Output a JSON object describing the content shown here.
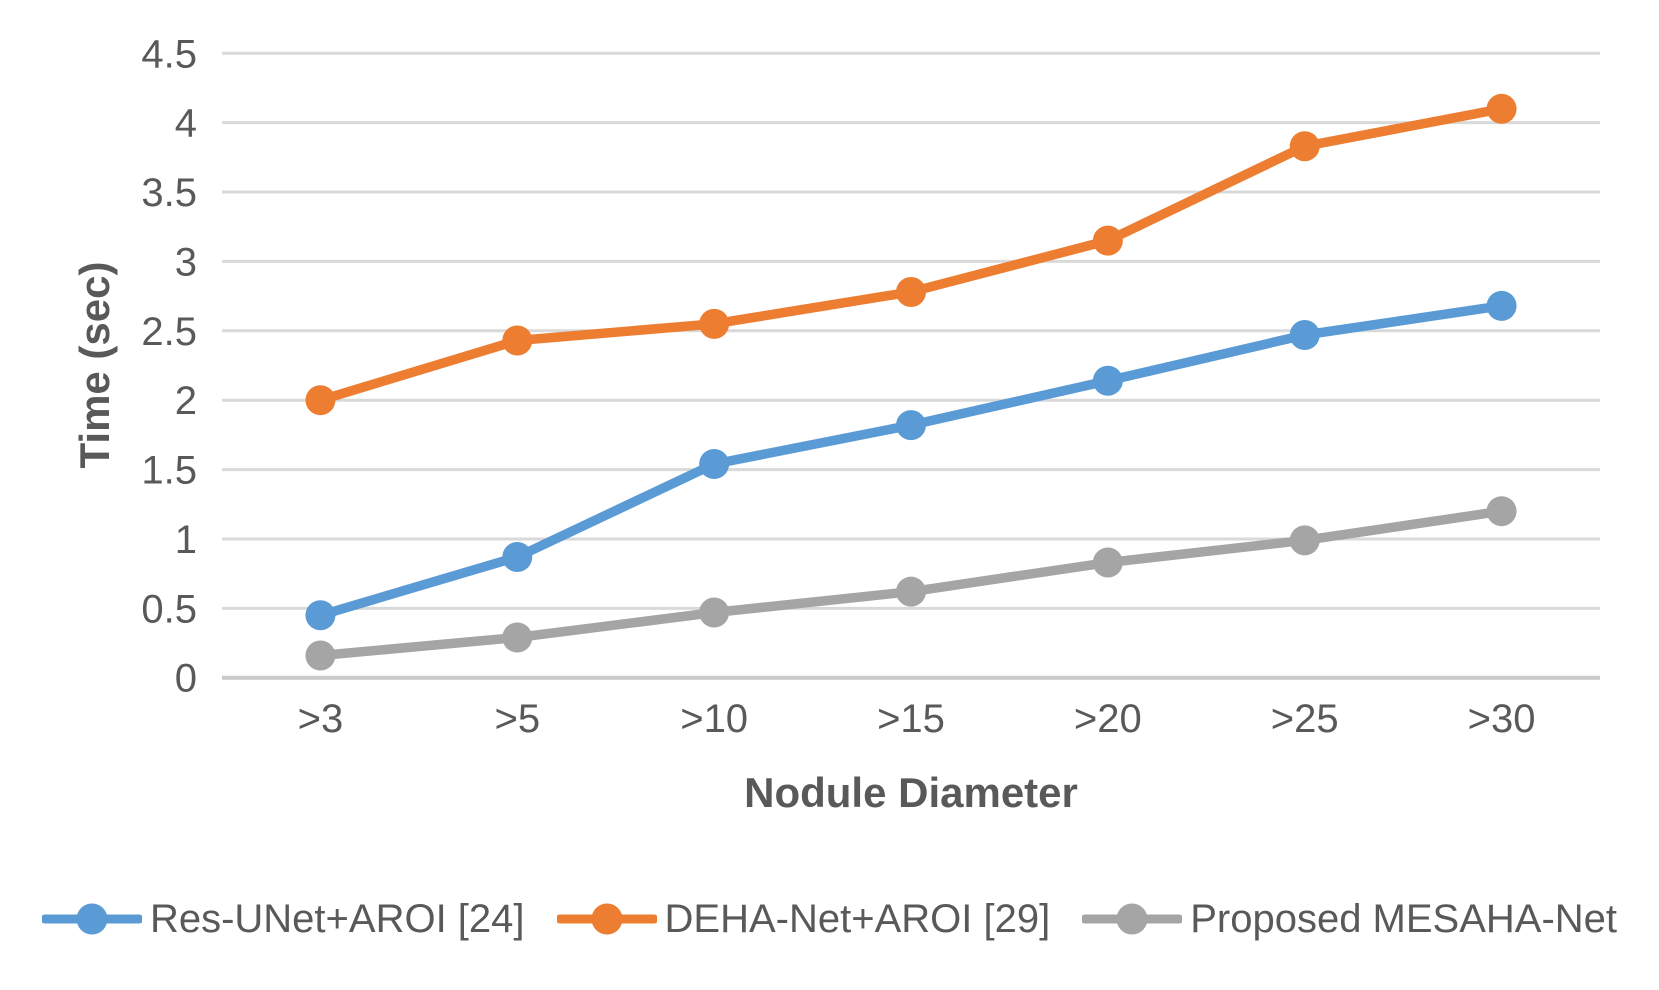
{
  "chart_data": {
    "type": "line",
    "title": "",
    "xlabel": "Nodule Diameter",
    "ylabel": "Time (sec)",
    "categories": [
      ">3",
      ">5",
      ">10",
      ">15",
      ">20",
      ">25",
      ">30"
    ],
    "series": [
      {
        "name": "Res-UNet+AROI [24]",
        "color": "#5B9BD5",
        "values": [
          0.45,
          0.87,
          1.54,
          1.82,
          2.14,
          2.47,
          2.68
        ]
      },
      {
        "name": "DEHA-Net+AROI [29]",
        "color": "#ED7D31",
        "values": [
          2.0,
          2.43,
          2.55,
          2.78,
          3.15,
          3.83,
          4.1
        ]
      },
      {
        "name": "Proposed MESAHA-Net",
        "color": "#A5A5A5",
        "values": [
          0.16,
          0.29,
          0.47,
          0.62,
          0.83,
          0.99,
          1.2
        ]
      }
    ],
    "ylim": [
      0,
      4.5
    ],
    "yticks": [
      0,
      0.5,
      1,
      1.5,
      2,
      2.5,
      3,
      3.5,
      4,
      4.5
    ],
    "grid": true,
    "legend_position": "bottom",
    "marker": "circle",
    "colors": {
      "text": "#595959",
      "gridline": "#D9D9D9",
      "axis_line": "#C9C9C9",
      "background": "#FFFFFF"
    }
  }
}
